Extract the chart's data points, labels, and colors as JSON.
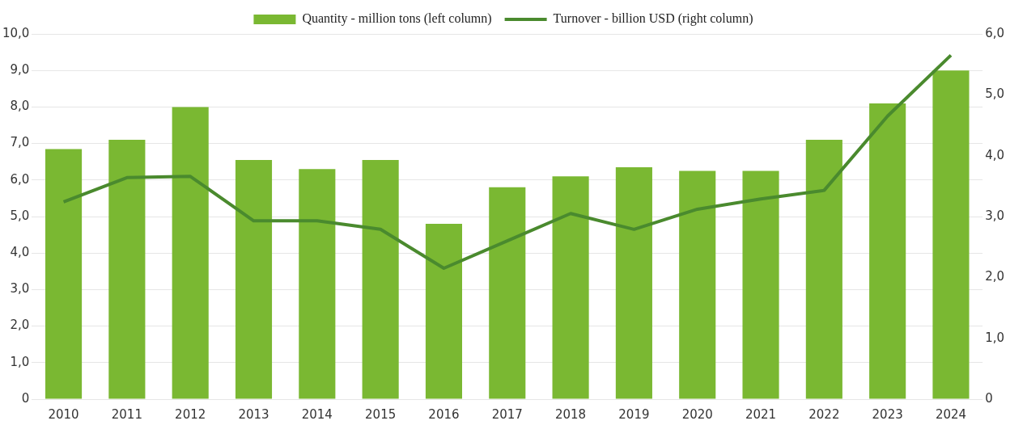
{
  "chart_data": {
    "type": "bar",
    "categories": [
      "2010",
      "2011",
      "2012",
      "2013",
      "2014",
      "2015",
      "2016",
      "2017",
      "2018",
      "2019",
      "2020",
      "2021",
      "2022",
      "2023",
      "2024"
    ],
    "series": [
      {
        "name": "Quantity - million tons (left column)",
        "color": "#7ab832",
        "values": [
          6.85,
          7.1,
          8.0,
          6.55,
          6.3,
          6.55,
          4.8,
          5.8,
          6.1,
          6.35,
          6.25,
          6.25,
          7.1,
          8.1,
          9.0
        ]
      },
      {
        "name": "Turnover - billion USD (right column)",
        "type": "line",
        "axis": "y2",
        "color": "#4a8a2e",
        "values": [
          3.24,
          3.64,
          3.66,
          2.93,
          2.93,
          2.79,
          2.15,
          2.6,
          3.05,
          2.79,
          3.12,
          3.29,
          3.43,
          4.65,
          5.65
        ]
      }
    ],
    "ylim": [
      0,
      10
    ],
    "yticks": [
      0,
      {
        "value": 1,
        "label": "1,0"
      },
      {
        "value": 2,
        "label": "2,0"
      },
      {
        "value": 3,
        "label": "3,0"
      },
      {
        "value": 4,
        "label": "4,0"
      },
      {
        "value": 5,
        "label": "5,0"
      },
      {
        "value": 6,
        "label": "6,0"
      },
      {
        "value": 7,
        "label": "7,0"
      },
      {
        "value": 8,
        "label": "8,0"
      },
      {
        "value": 9,
        "label": "9,0"
      },
      {
        "value": 10,
        "label": "10,0"
      }
    ],
    "y2lim": [
      0,
      6
    ],
    "y2ticks": [
      0,
      {
        "value": 1,
        "label": "1,0"
      },
      {
        "value": 2,
        "label": "2,0"
      },
      {
        "value": 3,
        "label": "3,0"
      },
      {
        "value": 4,
        "label": "4,0"
      },
      {
        "value": 5,
        "label": "5,0"
      },
      {
        "value": 6,
        "label": "6,0"
      }
    ],
    "grid": "y",
    "legend": "top",
    "marker": "none",
    "line_style": "solid"
  }
}
